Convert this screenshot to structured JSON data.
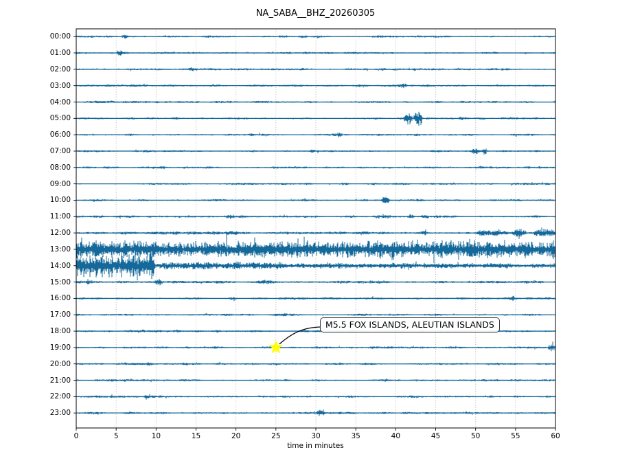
{
  "chart_data": {
    "type": "seismogram-dayplot",
    "title": "NA_SABA__BHZ_20260305",
    "xlabel": "time in minutes",
    "x_range": [
      0,
      60
    ],
    "x_ticks": [
      0,
      5,
      10,
      15,
      20,
      25,
      30,
      35,
      40,
      45,
      50,
      55,
      60
    ],
    "grid": "vertical-dotted",
    "trace_color": "#14689a",
    "grid_color": "#b0b0b0",
    "frame_color": "#000000",
    "text_color": "#000000",
    "rows": [
      {
        "label": "00:00",
        "base": 1.0,
        "events": [
          [
            5.6,
            6.5,
            2.0
          ],
          [
            27.8,
            29.0,
            1.4
          ]
        ]
      },
      {
        "label": "01:00",
        "base": 1.0,
        "events": [
          [
            5.0,
            6.0,
            2.2
          ]
        ]
      },
      {
        "label": "02:00",
        "base": 1.0,
        "events": [
          [
            14.0,
            15.2,
            1.4
          ]
        ]
      },
      {
        "label": "03:00",
        "base": 1.0,
        "events": [
          [
            35.0,
            35.6,
            1.2
          ],
          [
            40.2,
            41.6,
            2.4
          ]
        ]
      },
      {
        "label": "04:00",
        "base": 1.0,
        "events": []
      },
      {
        "label": "05:00",
        "base": 1.0,
        "events": [
          [
            41.0,
            42.1,
            7.5
          ],
          [
            42.2,
            43.4,
            10.0
          ],
          [
            47.8,
            49.3,
            1.6
          ]
        ]
      },
      {
        "label": "06:00",
        "base": 1.0,
        "events": [
          [
            32.6,
            33.3,
            3.5
          ]
        ]
      },
      {
        "label": "07:00",
        "base": 1.0,
        "events": [
          [
            29.2,
            30.4,
            1.6
          ],
          [
            49.5,
            50.5,
            4.5
          ],
          [
            50.7,
            51.6,
            3.2
          ]
        ]
      },
      {
        "label": "08:00",
        "base": 1.0,
        "events": []
      },
      {
        "label": "09:00",
        "base": 1.0,
        "events": [
          [
            33.0,
            34.2,
            1.2
          ]
        ]
      },
      {
        "label": "10:00",
        "base": 1.0,
        "events": [
          [
            38.2,
            39.3,
            3.8
          ]
        ]
      },
      {
        "label": "11:00",
        "base": 1.15,
        "events": [
          [
            18.6,
            20.0,
            1.8
          ],
          [
            37.0,
            39.5,
            1.8
          ],
          [
            41.4,
            42.4,
            2.2
          ],
          [
            43.0,
            44.2,
            1.5
          ]
        ]
      },
      {
        "label": "12:00",
        "base": 1.3,
        "events": [
          [
            12.0,
            13.0,
            1.4
          ],
          [
            18.8,
            20.2,
            1.6
          ],
          [
            43.0,
            44.2,
            1.8
          ],
          [
            50.0,
            54.2,
            2.4
          ],
          [
            54.4,
            56.4,
            4.2
          ],
          [
            57.2,
            60,
            5.5
          ]
        ]
      },
      {
        "label": "13:00",
        "base": 1.5,
        "events": [
          [
            0,
            60,
            9.0
          ]
        ]
      },
      {
        "label": "14:00",
        "base": 1.3,
        "events": [
          [
            0,
            9.7,
            11.5
          ],
          [
            8.9,
            9.9,
            16
          ],
          [
            9.7,
            26,
            1.5
          ],
          [
            9.7,
            60,
            1.8
          ]
        ]
      },
      {
        "label": "15:00",
        "base": 1.3,
        "events": [
          [
            0,
            2.6,
            1.8
          ],
          [
            9.8,
            10.8,
            2.8
          ],
          [
            23.0,
            24.6,
            1.3
          ]
        ]
      },
      {
        "label": "16:00",
        "base": 1.05,
        "events": [
          [
            19.0,
            20.2,
            1.2
          ],
          [
            54.0,
            55.4,
            2.2
          ]
        ]
      },
      {
        "label": "17:00",
        "base": 1.0,
        "events": [
          [
            25.5,
            27.0,
            1.1
          ]
        ]
      },
      {
        "label": "18:00",
        "base": 1.05,
        "events": [
          [
            12.0,
            13.2,
            1.3
          ],
          [
            17.0,
            18.2,
            1.2
          ]
        ]
      },
      {
        "label": "19:00",
        "base": 1.05,
        "events": [
          [
            59.0,
            60,
            5.5
          ]
        ]
      },
      {
        "label": "20:00",
        "base": 1.0,
        "events": [
          [
            8.7,
            9.5,
            1.6
          ]
        ]
      },
      {
        "label": "21:00",
        "base": 1.0,
        "events": [
          [
            26.0,
            27.0,
            1.2
          ]
        ]
      },
      {
        "label": "22:00",
        "base": 1.0,
        "events": [
          [
            8.4,
            9.3,
            1.5
          ]
        ]
      },
      {
        "label": "23:00",
        "base": 1.0,
        "events": [
          [
            30.1,
            31.3,
            3.8
          ]
        ]
      }
    ],
    "annotation": {
      "text": "M5.5 FOX ISLANDS, ALEUTIAN ISLANDS",
      "row": 19,
      "minute": 25,
      "marker": "star",
      "marker_color": "#ffff00",
      "box_x": 466,
      "box_y": 462
    }
  }
}
